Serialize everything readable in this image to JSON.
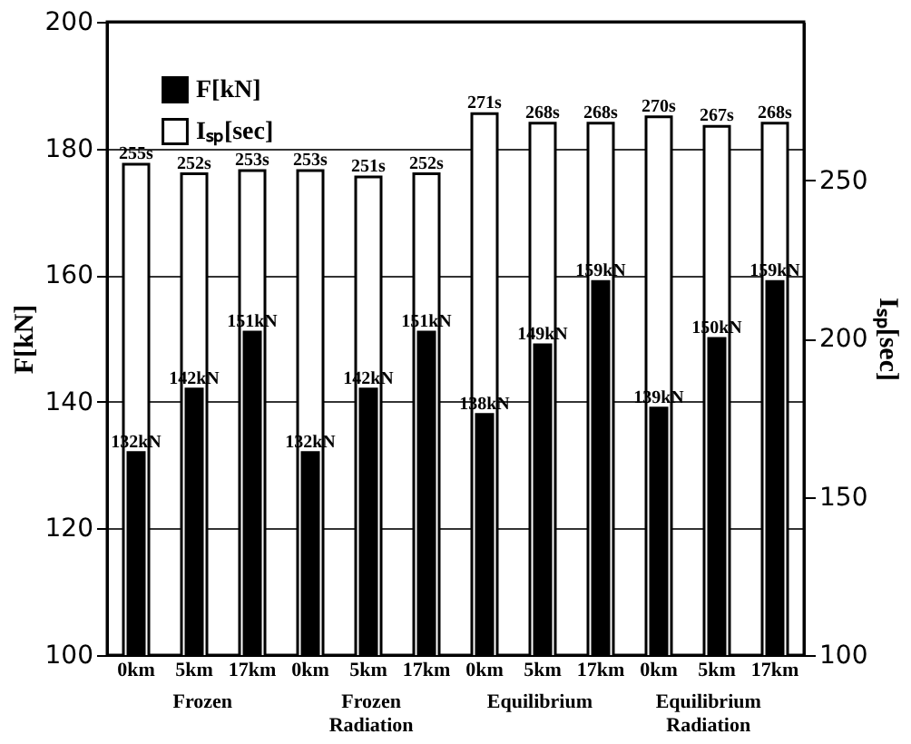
{
  "chart_data": {
    "type": "bar",
    "categories": [
      "0km",
      "5km",
      "17km",
      "0km",
      "5km",
      "17km",
      "0km",
      "5km",
      "17km",
      "0km",
      "5km",
      "17km"
    ],
    "series": [
      {
        "name": "F[kN]",
        "color": "#000000",
        "values": [
          132,
          142,
          151,
          132,
          142,
          151,
          138,
          149,
          159,
          139,
          150,
          159
        ],
        "value_labels": [
          "132kN",
          "142kN",
          "151kN",
          "132kN",
          "142kN",
          "151kN",
          "138kN",
          "149kN",
          "159kN",
          "139kN",
          "150kN",
          "159kN"
        ]
      },
      {
        "name": "Iₛₚ[sec]",
        "color": "#ffffff",
        "axis": "y2",
        "values": [
          255,
          252,
          253,
          253,
          251,
          252,
          271,
          268,
          268,
          270,
          267,
          268
        ],
        "value_labels": [
          "255s",
          "252s",
          "253s",
          "253s",
          "251s",
          "252s",
          "271s",
          "268s",
          "268s",
          "270s",
          "267s",
          "268s"
        ]
      }
    ],
    "ylabel": "F[kN]",
    "y2label": "Iₛₚ[sec]",
    "ylim": [
      100,
      200
    ],
    "yticks": [
      100,
      120,
      140,
      160,
      180,
      200
    ],
    "y2lim": [
      100,
      300
    ],
    "y2ticks": [
      100,
      150,
      200,
      250
    ],
    "grid": "y",
    "legend": "top left",
    "annotations": [
      "Frozen",
      "Frozen Radiation",
      "Equilibrium",
      "Equilibrium Radiation"
    ]
  }
}
